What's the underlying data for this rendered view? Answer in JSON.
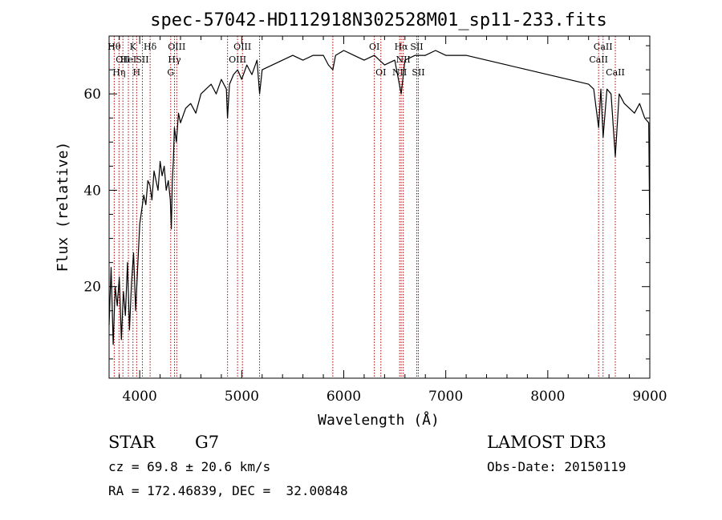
{
  "chart_data": {
    "type": "line",
    "title": "spec-57042-HD112918N302528M01_sp11-233.fits",
    "xlabel": "Wavelength (Å)",
    "ylabel": "Flux (relative)",
    "xlim": [
      3700,
      9000
    ],
    "ylim": [
      1,
      72
    ],
    "x_ticks": [
      4000,
      5000,
      6000,
      7000,
      8000,
      9000
    ],
    "y_ticks": [
      20,
      40,
      60
    ],
    "grid": false,
    "line_color": "#000000",
    "marker_color": "#b00000",
    "series": [
      {
        "x": [
          3700,
          3720,
          3740,
          3760,
          3780,
          3800,
          3820,
          3840,
          3860,
          3880,
          3900,
          3920,
          3940,
          3960,
          3980,
          4000,
          4020,
          4040,
          4060,
          4080,
          4100,
          4120,
          4140,
          4160,
          4180,
          4200,
          4220,
          4240,
          4260,
          4280,
          4300,
          4310,
          4320,
          4330,
          4340,
          4360,
          4380,
          4400,
          4450,
          4500,
          4550,
          4600,
          4650,
          4700,
          4750,
          4800,
          4850,
          4861,
          4880,
          4920,
          4960,
          5000,
          5050,
          5100,
          5150,
          5175,
          5200,
          5300,
          5400,
          5500,
          5600,
          5700,
          5800,
          5850,
          5893,
          5920,
          6000,
          6100,
          6200,
          6300,
          6400,
          6500,
          6563,
          6600,
          6700,
          6800,
          6900,
          7000,
          7200,
          7400,
          7600,
          7800,
          8000,
          8200,
          8400,
          8450,
          8498,
          8520,
          8542,
          8580,
          8620,
          8662,
          8700,
          8750,
          8800,
          8850,
          8900,
          8950,
          8990,
          9000
        ],
        "values": [
          12,
          24,
          8,
          20,
          16,
          22,
          9,
          19,
          14,
          25,
          11,
          21,
          27,
          15,
          24,
          33,
          36,
          39,
          37,
          42,
          41,
          38,
          44,
          42,
          40,
          46,
          43,
          45,
          40,
          42,
          38,
          32,
          42,
          46,
          53,
          50,
          56,
          54,
          57,
          58,
          56,
          60,
          61,
          62,
          60,
          63,
          61,
          55,
          62,
          64,
          65,
          63,
          66,
          64,
          67,
          60,
          65,
          66,
          67,
          68,
          67,
          68,
          68,
          66,
          65,
          68,
          69,
          68,
          67,
          68,
          66,
          67,
          60,
          67,
          68,
          68,
          69,
          68,
          68,
          67,
          66,
          65,
          64,
          63,
          62,
          61,
          53,
          61,
          51,
          61,
          60,
          47,
          60,
          58,
          57,
          56,
          58,
          55,
          54,
          30
        ]
      }
    ],
    "line_markers": [
      {
        "x": 3750,
        "label": "Hθ",
        "row": 0
      },
      {
        "x": 3797,
        "label": "Hη",
        "row": 2
      },
      {
        "x": 3835,
        "label": "OII",
        "row": 1
      },
      {
        "x": 3889,
        "label": "HeI",
        "row": 1
      },
      {
        "x": 3934,
        "label": "K",
        "row": 0
      },
      {
        "x": 3970,
        "label": "H",
        "row": 2
      },
      {
        "x": 4026,
        "label": "SII",
        "row": 1
      },
      {
        "x": 4102,
        "label": "Hδ",
        "row": 0
      },
      {
        "x": 4304,
        "label": "G",
        "row": 2
      },
      {
        "x": 4341,
        "label": "Hγ",
        "row": 1
      },
      {
        "x": 4363,
        "label": "OIII",
        "row": 0
      },
      {
        "x": 4861,
        "label": "",
        "row": 0
      },
      {
        "x": 4959,
        "label": "OIII",
        "row": 1
      },
      {
        "x": 5007,
        "label": "OIII",
        "row": 0
      },
      {
        "x": 5175,
        "label": "",
        "row": 0
      },
      {
        "x": 5893,
        "label": "",
        "row": 0
      },
      {
        "x": 6300,
        "label": "OI",
        "row": 0
      },
      {
        "x": 6364,
        "label": "OI",
        "row": 2
      },
      {
        "x": 6548,
        "label": "NII",
        "row": 2
      },
      {
        "x": 6563,
        "label": "Hα",
        "row": 0
      },
      {
        "x": 6583,
        "label": "NII",
        "row": 1
      },
      {
        "x": 6716,
        "label": "SII",
        "row": 0
      },
      {
        "x": 6731,
        "label": "SII",
        "row": 2
      },
      {
        "x": 8498,
        "label": "CaII",
        "row": 1
      },
      {
        "x": 8542,
        "label": "CaII",
        "row": 0
      },
      {
        "x": 8662,
        "label": "CaII",
        "row": 2
      }
    ]
  },
  "info": {
    "object_class": "STAR",
    "subclass": "G7",
    "survey": "LAMOST DR3",
    "redshift": "cz = 69.8 ± 20.6 km/s",
    "obs_date": "Obs-Date: 20150119",
    "coords": "RA = 172.46839, DEC =  32.00848"
  }
}
